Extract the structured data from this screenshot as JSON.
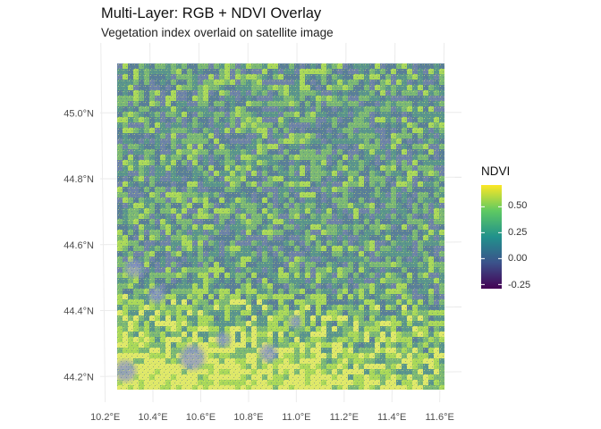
{
  "title": "Multi-Layer: RGB + NDVI Overlay",
  "subtitle": "Vegetation index overlaid on satellite image",
  "map": {
    "extent_lon": [
      10.25,
      11.62
    ],
    "extent_lat": [
      44.16,
      45.15
    ],
    "layers": [
      "RGB satellite image",
      "NDVI overlay"
    ],
    "x_ticks": [
      "10.2°E",
      "10.4°E",
      "10.6°E",
      "10.8°E",
      "11.0°E",
      "11.2°E",
      "11.4°E",
      "11.6°E"
    ],
    "y_ticks": [
      "44.2°N",
      "44.4°N",
      "44.6°N",
      "44.8°N",
      "45.0°N"
    ],
    "x_tick_values": [
      10.2,
      10.4,
      10.6,
      10.8,
      11.0,
      11.2,
      11.4,
      11.6
    ],
    "y_tick_values": [
      44.2,
      44.4,
      44.6,
      44.8,
      45.0
    ],
    "grid": true
  },
  "legend": {
    "title": "NDVI",
    "labels": [
      "0.50",
      "0.25",
      "0.00",
      "-0.25"
    ],
    "values": [
      0.5,
      0.25,
      0.0,
      -0.25
    ],
    "range": [
      -0.29,
      0.71
    ],
    "colormap": "viridis",
    "colors": [
      "#440154",
      "#3b528b",
      "#21918c",
      "#5ec962",
      "#fde725"
    ]
  }
}
